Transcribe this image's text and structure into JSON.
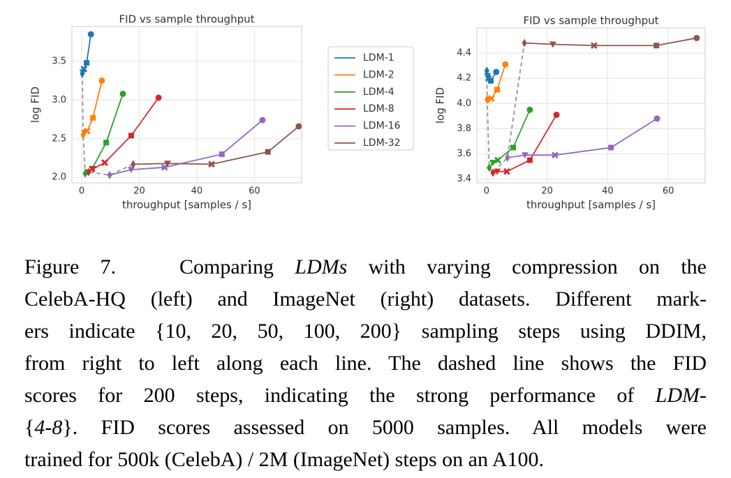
{
  "chart_data": [
    {
      "type": "line",
      "title": "FID vs sample throughput",
      "x_label": "throughput [samples / s]",
      "y_label": "log FID",
      "xlim": [
        -3.4,
        76.4
      ],
      "ylim": [
        1.93,
        3.95
      ],
      "xticks": [
        0,
        20,
        40,
        60
      ],
      "yticks": [
        {
          "value": 2,
          "label": "2.0"
        },
        2.5,
        {
          "value": 3,
          "label": "3.0"
        },
        3.5
      ],
      "grid": true,
      "legend": "outside right",
      "markers": [
        "circle",
        "square",
        "x",
        "triangle-down",
        "diamond"
      ],
      "dashed_color": "#9e9e9e",
      "series": [
        {
          "name": "LDM-1",
          "color": "#1f77b4",
          "x": [
            3.2,
            1.7,
            0.8,
            0.4,
            0.2
          ],
          "values": [
            3.85,
            3.48,
            3.4,
            3.36,
            3.34
          ]
        },
        {
          "name": "LDM-2",
          "color": "#ff7f0e",
          "x": [
            7.0,
            3.9,
            1.9,
            1.0,
            0.5
          ],
          "values": [
            3.25,
            2.77,
            2.6,
            2.58,
            2.55
          ]
        },
        {
          "name": "LDM-4",
          "color": "#2ca02c",
          "x": [
            14.3,
            8.5,
            3.6,
            2.0,
            1.2
          ],
          "values": [
            3.08,
            2.45,
            2.11,
            2.07,
            2.05
          ]
        },
        {
          "name": "LDM-8",
          "color": "#d62728",
          "x": [
            26.7,
            17.2,
            8.0,
            3.9,
            2.4
          ],
          "values": [
            3.03,
            2.54,
            2.19,
            2.11,
            2.07
          ]
        },
        {
          "name": "LDM-16",
          "color": "#9467bd",
          "x": [
            62.8,
            48.7,
            28.8,
            17.2,
            9.7
          ],
          "values": [
            2.74,
            2.3,
            2.13,
            2.1,
            2.03
          ]
        },
        {
          "name": "LDM-32",
          "color": "#8c564b",
          "x": [
            75.4,
            64.7,
            45.1,
            29.8,
            17.9
          ],
          "values": [
            2.66,
            2.33,
            2.17,
            2.18,
            2.17
          ]
        }
      ]
    },
    {
      "type": "line",
      "title": "FID vs sample throughput",
      "x_label": "throughput [samples / s]",
      "y_label": "log FID",
      "xlim": [
        -3.2,
        72.2
      ],
      "ylim": [
        3.37,
        4.6
      ],
      "xticks": [
        0,
        20,
        40,
        60
      ],
      "yticks": [
        3.4,
        3.6,
        3.8,
        {
          "value": 4,
          "label": "4.0"
        },
        4.2,
        4.4
      ],
      "grid": true,
      "markers": [
        "circle",
        "square",
        "x",
        "triangle-down",
        "diamond"
      ],
      "dashed_color": "#9e9e9e",
      "series": [
        {
          "color": "#1f77b4",
          "x": [
            3.2,
            1.4,
            0.6,
            0.3,
            0.1
          ],
          "values": [
            4.25,
            4.18,
            4.2,
            4.22,
            4.26
          ]
        },
        {
          "color": "#ff7f0e",
          "x": [
            6.2,
            3.5,
            1.6,
            0.7,
            0.2
          ],
          "values": [
            4.31,
            4.11,
            4.04,
            4.03,
            4.03
          ]
        },
        {
          "color": "#2ca02c",
          "x": [
            14.3,
            8.8,
            3.7,
            2.1,
            0.9
          ],
          "values": [
            3.95,
            3.65,
            3.55,
            3.53,
            3.49
          ]
        },
        {
          "color": "#d62728",
          "x": [
            23.1,
            14.3,
            6.7,
            3.5,
            2.1
          ],
          "values": [
            3.91,
            3.55,
            3.46,
            3.46,
            3.45
          ]
        },
        {
          "color": "#9467bd",
          "x": [
            56.3,
            41.1,
            22.6,
            12.7,
            6.9
          ],
          "values": [
            3.88,
            3.65,
            3.59,
            3.59,
            3.57
          ]
        },
        {
          "color": "#8c564b",
          "x": [
            69.4,
            56.1,
            35.5,
            21.9,
            12.5
          ],
          "values": [
            4.52,
            4.46,
            4.46,
            4.47,
            4.48
          ]
        }
      ]
    }
  ],
  "caption": {
    "lines": [
      [
        {
          "text": "Figure 7.   Comparing "
        },
        {
          "text": "LDMs",
          "italic": true
        },
        {
          "text": " with varying compression on the"
        }
      ],
      [
        {
          "text": "CelebA-HQ (left) and ImageNet (right) datasets. Different mark-"
        }
      ],
      [
        {
          "text": "ers indicate {10, 20, 50, 100, 200} sampling steps using DDIM,"
        }
      ],
      [
        {
          "text": "from right to left along each line. The dashed line shows the FID"
        }
      ],
      [
        {
          "text": "scores for 200 steps, indicating the strong performance of "
        },
        {
          "text": "LDM-",
          "italic": true
        }
      ],
      [
        {
          "text": "{"
        },
        {
          "text": "4-8",
          "italic": true
        },
        {
          "text": "}. FID scores assessed on 5000 samples. All models were"
        }
      ],
      [
        {
          "text": "trained for 500k (CelebA) / 2M (ImageNet) steps on an A100."
        }
      ]
    ]
  }
}
